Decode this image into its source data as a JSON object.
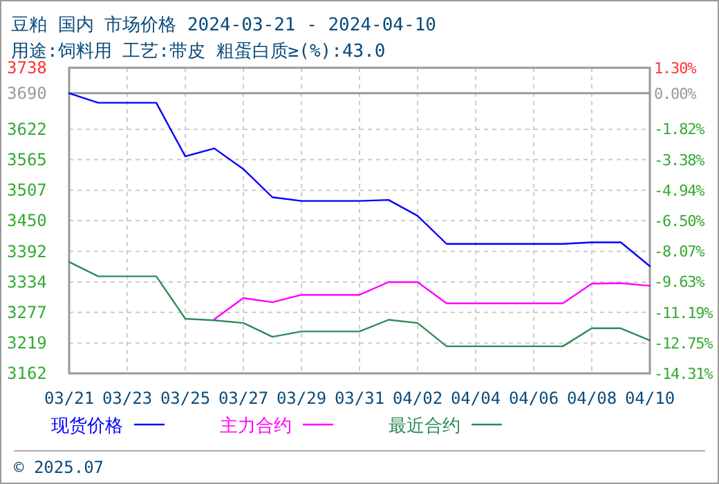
{
  "chart_data": {
    "type": "line",
    "title": "豆粕 国内 市场价格 2024-03-21 - 2024-04-10",
    "subtitle": "用途:饲料用 工艺:带皮 粗蛋白质≥(%):43.0",
    "x": [
      "2024-03-21",
      "2024-03-22",
      "2024-03-23",
      "2024-03-24",
      "2024-03-25",
      "2024-03-26",
      "2024-03-27",
      "2024-03-28",
      "2024-03-29",
      "2024-03-30",
      "2024-03-31",
      "2024-04-01",
      "2024-04-02",
      "2024-04-03",
      "2024-04-04",
      "2024-04-05",
      "2024-04-06",
      "2024-04-07",
      "2024-04-08",
      "2024-04-09",
      "2024-04-10"
    ],
    "series": [
      {
        "name": "现货价格",
        "color": "#0000ff",
        "values": [
          3690,
          3672,
          3672,
          3672,
          3571,
          3586,
          3547,
          3494,
          3487,
          3487,
          3487,
          3489,
          3459,
          3406,
          3406,
          3406,
          3406,
          3406,
          3409,
          3409,
          3364
        ]
      },
      {
        "name": "主力合约",
        "color": "#ff00ff",
        "values": [
          null,
          null,
          null,
          null,
          null,
          3264,
          3304,
          3296,
          3310,
          3310,
          3310,
          3334,
          3334,
          3294,
          3294,
          3294,
          3294,
          3294,
          3331,
          3332,
          3327
        ]
      },
      {
        "name": "最近合约",
        "color": "#2e8b57",
        "values": [
          3372,
          3345,
          3345,
          3345,
          3265,
          3262,
          3257,
          3231,
          3241,
          3241,
          3241,
          3263,
          3257,
          3213,
          3213,
          3213,
          3213,
          3213,
          3247,
          3247,
          3224
        ]
      }
    ],
    "xlim": [
      "2024-03-21",
      "2024-04-10"
    ],
    "xticks": [
      {
        "value": "2024-03-21",
        "label": "03/21"
      },
      {
        "value": "2024-03-23",
        "label": "03/23"
      },
      {
        "value": "2024-03-25",
        "label": "03/25"
      },
      {
        "value": "2024-03-27",
        "label": "03/27"
      },
      {
        "value": "2024-03-29",
        "label": "03/29"
      },
      {
        "value": "2024-03-31",
        "label": "03/31"
      },
      {
        "value": "2024-04-02",
        "label": "04/02"
      },
      {
        "value": "2024-04-04",
        "label": "04/04"
      },
      {
        "value": "2024-04-06",
        "label": "04/06"
      },
      {
        "value": "2024-04-08",
        "label": "04/08"
      },
      {
        "value": "2024-04-10",
        "label": "04/10"
      }
    ],
    "ylim": [
      3162,
      3738
    ],
    "yticks": [
      3162,
      3219,
      3277,
      3334,
      3392,
      3450,
      3507,
      3565,
      3622,
      3690,
      3738
    ],
    "y2lim": [
      -14.31,
      1.3
    ],
    "y2ticks": [
      {
        "value": -14.31,
        "label": "-14.31%"
      },
      {
        "value": -12.75,
        "label": "-12.75%"
      },
      {
        "value": -11.19,
        "label": "-11.19%"
      },
      {
        "value": -9.63,
        "label": "-9.63%"
      },
      {
        "value": -8.07,
        "label": "-8.07%"
      },
      {
        "value": -6.5,
        "label": "-6.50%"
      },
      {
        "value": -4.94,
        "label": "-4.94%"
      },
      {
        "value": -3.38,
        "label": "-3.38%"
      },
      {
        "value": -1.82,
        "label": "-1.82%"
      },
      {
        "value": 0,
        "label": "0.00%"
      },
      {
        "value": 1.3,
        "label": "1.30%"
      }
    ],
    "ref_lines": [
      {
        "axis": "y",
        "value": 3690,
        "color": "#999999"
      }
    ],
    "grid": true,
    "legend": "bottom",
    "marker": "none",
    "line_style": "solid",
    "annotations": [
      "© 2025.07"
    ]
  }
}
